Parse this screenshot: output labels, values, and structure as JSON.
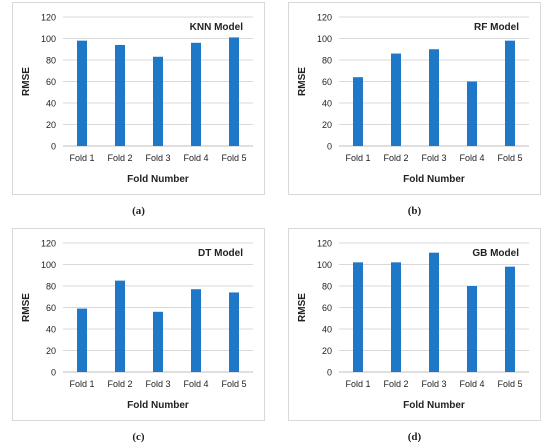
{
  "chart_data": [
    {
      "type": "bar",
      "title": "KNN Model",
      "xlabel": "Fold Number",
      "ylabel": "RMSE",
      "ylim": [
        0,
        120
      ],
      "yticks": [
        0,
        20,
        40,
        60,
        80,
        100,
        120
      ],
      "grid": true,
      "categories": [
        "Fold 1",
        "Fold 2",
        "Fold 3",
        "Fold 4",
        "Fold 5"
      ],
      "values": [
        98,
        94,
        83,
        96,
        101
      ],
      "caption": "(a)"
    },
    {
      "type": "bar",
      "title": "RF Model",
      "xlabel": "Fold Number",
      "ylabel": "RMSE",
      "ylim": [
        0,
        120
      ],
      "yticks": [
        0,
        20,
        40,
        60,
        80,
        100,
        120
      ],
      "grid": true,
      "categories": [
        "Fold 1",
        "Fold 2",
        "Fold 3",
        "Fold 4",
        "Fold 5"
      ],
      "values": [
        64,
        86,
        90,
        60,
        98
      ],
      "caption": "(b)"
    },
    {
      "type": "bar",
      "title": "DT Model",
      "xlabel": "Fold Number",
      "ylabel": "RMSE",
      "ylim": [
        0,
        120
      ],
      "yticks": [
        0,
        20,
        40,
        60,
        80,
        100,
        120
      ],
      "grid": true,
      "categories": [
        "Fold 1",
        "Fold 2",
        "Fold 3",
        "Fold 4",
        "Fold 5"
      ],
      "values": [
        59,
        85,
        56,
        77,
        74
      ],
      "caption": "(c)"
    },
    {
      "type": "bar",
      "title": "GB Model",
      "xlabel": "Fold Number",
      "ylabel": "RMSE",
      "ylim": [
        0,
        120
      ],
      "yticks": [
        0,
        20,
        40,
        60,
        80,
        100,
        120
      ],
      "grid": true,
      "categories": [
        "Fold 1",
        "Fold 2",
        "Fold 3",
        "Fold 4",
        "Fold 5"
      ],
      "values": [
        102,
        102,
        111,
        80,
        98
      ],
      "caption": "(d)"
    }
  ],
  "colors": {
    "bar": "#1f77c8",
    "grid": "#d9d9d9",
    "axis": "#bfbfbf",
    "text": "#222222"
  }
}
